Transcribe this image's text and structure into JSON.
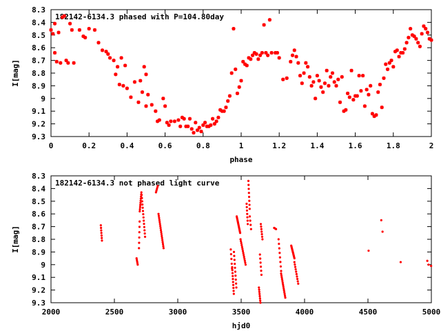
{
  "chart_data": [
    {
      "type": "scatter",
      "title": "182142-6134.3 phased with P=104.80day",
      "xlabel": "phase",
      "ylabel": "I[mag]",
      "xlim": [
        0,
        2
      ],
      "ylim": [
        8.3,
        9.3
      ],
      "y_inverted": true,
      "xticks": [
        "0",
        "0.2",
        "0.4",
        "0.6",
        "0.8",
        "1",
        "1.2",
        "1.4",
        "1.6",
        "1.8",
        "2"
      ],
      "yticks": [
        "8.3",
        "8.4",
        "8.5",
        "8.6",
        "8.7",
        "8.8",
        "8.9",
        "9",
        "9.1",
        "9.2",
        "9.3"
      ],
      "marker": "star",
      "color": "#ff0000",
      "points": [
        [
          0.0,
          8.46
        ],
        [
          0.01,
          8.49
        ],
        [
          0.02,
          8.41
        ],
        [
          0.02,
          8.64
        ],
        [
          0.03,
          8.71
        ],
        [
          0.04,
          8.48
        ],
        [
          0.05,
          8.72
        ],
        [
          0.06,
          8.36
        ],
        [
          0.07,
          8.35
        ],
        [
          0.08,
          8.7
        ],
        [
          0.09,
          8.72
        ],
        [
          0.1,
          8.41
        ],
        [
          0.11,
          8.46
        ],
        [
          0.12,
          8.72
        ],
        [
          0.15,
          8.46
        ],
        [
          0.17,
          8.51
        ],
        [
          0.18,
          8.52
        ],
        [
          0.2,
          8.45
        ],
        [
          0.23,
          8.46
        ],
        [
          0.25,
          8.56
        ],
        [
          0.27,
          8.62
        ],
        [
          0.29,
          8.63
        ],
        [
          0.3,
          8.65
        ],
        [
          0.31,
          8.68
        ],
        [
          0.33,
          8.7
        ],
        [
          0.34,
          8.81
        ],
        [
          0.35,
          8.75
        ],
        [
          0.36,
          8.89
        ],
        [
          0.37,
          8.68
        ],
        [
          0.38,
          8.9
        ],
        [
          0.39,
          8.74
        ],
        [
          0.4,
          8.92
        ],
        [
          0.42,
          8.99
        ],
        [
          0.44,
          8.87
        ],
        [
          0.46,
          9.03
        ],
        [
          0.47,
          8.86
        ],
        [
          0.48,
          8.95
        ],
        [
          0.49,
          8.75
        ],
        [
          0.5,
          8.81
        ],
        [
          0.5,
          9.06
        ],
        [
          0.51,
          8.97
        ],
        [
          0.53,
          9.05
        ],
        [
          0.55,
          9.1
        ],
        [
          0.56,
          9.18
        ],
        [
          0.57,
          9.17
        ],
        [
          0.59,
          9.0
        ],
        [
          0.6,
          9.06
        ],
        [
          0.61,
          9.19
        ],
        [
          0.62,
          9.21
        ],
        [
          0.63,
          9.18
        ],
        [
          0.65,
          9.18
        ],
        [
          0.67,
          9.17
        ],
        [
          0.68,
          9.22
        ],
        [
          0.69,
          9.15
        ],
        [
          0.7,
          9.16
        ],
        [
          0.71,
          9.22
        ],
        [
          0.72,
          9.22
        ],
        [
          0.73,
          9.16
        ],
        [
          0.74,
          9.24
        ],
        [
          0.75,
          9.27
        ],
        [
          0.76,
          9.19
        ],
        [
          0.77,
          9.25
        ],
        [
          0.78,
          9.23
        ],
        [
          0.79,
          9.26
        ],
        [
          0.8,
          9.21
        ],
        [
          0.81,
          9.19
        ],
        [
          0.82,
          9.22
        ],
        [
          0.83,
          9.22
        ],
        [
          0.84,
          9.21
        ],
        [
          0.85,
          9.16
        ],
        [
          0.86,
          9.2
        ],
        [
          0.87,
          9.18
        ],
        [
          0.88,
          9.15
        ],
        [
          0.89,
          9.09
        ],
        [
          0.9,
          9.1
        ],
        [
          0.91,
          9.1
        ],
        [
          0.92,
          9.07
        ],
        [
          0.93,
          9.02
        ],
        [
          0.94,
          8.98
        ],
        [
          0.95,
          8.8
        ],
        [
          0.96,
          8.45
        ],
        [
          0.97,
          8.77
        ],
        [
          0.98,
          8.96
        ],
        [
          0.99,
          8.91
        ],
        [
          1.0,
          8.86
        ],
        [
          1.01,
          8.71
        ],
        [
          1.02,
          8.73
        ],
        [
          1.03,
          8.74
        ],
        [
          1.04,
          8.68
        ],
        [
          1.05,
          8.69
        ],
        [
          1.06,
          8.66
        ],
        [
          1.07,
          8.64
        ],
        [
          1.08,
          8.65
        ],
        [
          1.09,
          8.69
        ],
        [
          1.1,
          8.66
        ],
        [
          1.11,
          8.64
        ],
        [
          1.12,
          8.42
        ],
        [
          1.13,
          8.64
        ],
        [
          1.14,
          8.66
        ],
        [
          1.15,
          8.38
        ],
        [
          1.16,
          8.64
        ],
        [
          1.18,
          8.64
        ],
        [
          1.19,
          8.64
        ],
        [
          1.2,
          8.68
        ],
        [
          1.22,
          8.85
        ],
        [
          1.24,
          8.84
        ],
        [
          1.26,
          8.71
        ],
        [
          1.27,
          8.66
        ],
        [
          1.28,
          8.62
        ],
        [
          1.29,
          8.67
        ],
        [
          1.3,
          8.72
        ],
        [
          1.31,
          8.82
        ],
        [
          1.32,
          8.88
        ],
        [
          1.33,
          8.8
        ],
        [
          1.34,
          8.72
        ],
        [
          1.35,
          8.75
        ],
        [
          1.36,
          8.83
        ],
        [
          1.37,
          8.9
        ],
        [
          1.38,
          8.87
        ],
        [
          1.39,
          9.0
        ],
        [
          1.4,
          8.82
        ],
        [
          1.41,
          8.86
        ],
        [
          1.42,
          8.91
        ],
        [
          1.43,
          8.95
        ],
        [
          1.44,
          8.88
        ],
        [
          1.45,
          8.78
        ],
        [
          1.46,
          8.9
        ],
        [
          1.47,
          8.83
        ],
        [
          1.48,
          8.8
        ],
        [
          1.49,
          8.87
        ],
        [
          1.5,
          8.9
        ],
        [
          1.51,
          8.85
        ],
        [
          1.52,
          9.03
        ],
        [
          1.53,
          8.83
        ],
        [
          1.54,
          9.1
        ],
        [
          1.55,
          9.09
        ],
        [
          1.56,
          8.96
        ],
        [
          1.57,
          8.99
        ],
        [
          1.58,
          8.78
        ],
        [
          1.59,
          9.01
        ],
        [
          1.6,
          8.98
        ],
        [
          1.61,
          8.98
        ],
        [
          1.62,
          8.82
        ],
        [
          1.63,
          8.94
        ],
        [
          1.64,
          8.82
        ],
        [
          1.65,
          9.06
        ],
        [
          1.66,
          8.93
        ],
        [
          1.67,
          8.97
        ],
        [
          1.68,
          8.9
        ],
        [
          1.69,
          9.12
        ],
        [
          1.7,
          9.14
        ],
        [
          1.71,
          9.13
        ],
        [
          1.72,
          8.95
        ],
        [
          1.73,
          8.89
        ],
        [
          1.74,
          9.07
        ],
        [
          1.75,
          8.84
        ],
        [
          1.76,
          8.73
        ],
        [
          1.77,
          8.77
        ],
        [
          1.78,
          8.72
        ],
        [
          1.79,
          8.7
        ],
        [
          1.8,
          8.75
        ],
        [
          1.81,
          8.63
        ],
        [
          1.82,
          8.62
        ],
        [
          1.83,
          8.67
        ],
        [
          1.84,
          8.64
        ],
        [
          1.85,
          8.64
        ],
        [
          1.86,
          8.61
        ],
        [
          1.87,
          8.56
        ],
        [
          1.88,
          8.52
        ],
        [
          1.89,
          8.45
        ],
        [
          1.9,
          8.5
        ],
        [
          1.91,
          8.51
        ],
        [
          1.92,
          8.53
        ],
        [
          1.93,
          8.56
        ],
        [
          1.94,
          8.59
        ],
        [
          1.95,
          8.49
        ],
        [
          1.96,
          8.43
        ],
        [
          1.97,
          8.45
        ],
        [
          1.98,
          8.48
        ],
        [
          1.99,
          8.53
        ],
        [
          2.0,
          8.54
        ]
      ]
    },
    {
      "type": "scatter",
      "title": "182142-6134.3 not phased light curve",
      "xlabel": "hjd0",
      "ylabel": "I[mag]",
      "xlim": [
        2000,
        5000
      ],
      "ylim": [
        8.3,
        9.3
      ],
      "y_inverted": true,
      "xticks": [
        "2000",
        "2500",
        "3000",
        "3500",
        "4000",
        "4500",
        "5000"
      ],
      "yticks": [
        "8.3",
        "8.4",
        "8.5",
        "8.6",
        "8.7",
        "8.8",
        "8.9",
        "9",
        "9.1",
        "9.2",
        "9.3"
      ],
      "marker": "dot",
      "color": "#ff0000",
      "segments": [
        {
          "x": [
            2393,
            2402
          ],
          "y": [
            8.69,
            8.81
          ],
          "n": 7
        },
        {
          "x": [
            2675,
            2684
          ],
          "y": [
            8.95,
            9.0
          ],
          "n": 5
        },
        {
          "x": [
            2694,
            2699
          ],
          "y": [
            8.87,
            8.66
          ],
          "n": 6
        },
        {
          "x": [
            2700,
            2713
          ],
          "y": [
            8.58,
            8.43
          ],
          "n": 10
        },
        {
          "x": [
            2715,
            2742
          ],
          "y": [
            8.45,
            8.78
          ],
          "n": 14
        },
        {
          "x": [
            2828,
            2842
          ],
          "y": [
            8.43,
            8.38
          ],
          "n": 5
        },
        {
          "x": [
            2848,
            2888
          ],
          "y": [
            8.6,
            8.87
          ],
          "n": 18
        },
        {
          "x": [
            3418,
            3428
          ],
          "y": [
            8.88,
            9.03
          ],
          "n": 5
        },
        {
          "x": [
            3429,
            3442
          ],
          "y": [
            9.02,
            9.23
          ],
          "n": 10
        },
        {
          "x": [
            3443,
            3462
          ],
          "y": [
            8.9,
            9.18
          ],
          "n": 10
        },
        {
          "x": [
            3465,
            3492
          ],
          "y": [
            8.62,
            8.75
          ],
          "n": 14
        },
        {
          "x": [
            3495,
            3535
          ],
          "y": [
            8.8,
            9.0
          ],
          "n": 14
        },
        {
          "x": [
            3543,
            3552
          ],
          "y": [
            8.52,
            8.68
          ],
          "n": 7
        },
        {
          "x": [
            3557,
            3567
          ],
          "y": [
            8.34,
            8.56
          ],
          "n": 8
        },
        {
          "x": [
            3568,
            3578
          ],
          "y": [
            8.62,
            8.72
          ],
          "n": 4
        },
        {
          "x": [
            3640,
            3652
          ],
          "y": [
            9.18,
            9.3
          ],
          "n": 8
        },
        {
          "x": [
            3648,
            3660
          ],
          "y": [
            8.92,
            9.08
          ],
          "n": 6
        },
        {
          "x": [
            3655,
            3668
          ],
          "y": [
            8.68,
            8.8
          ],
          "n": 7
        },
        {
          "x": [
            3760,
            3775
          ],
          "y": [
            8.71,
            8.72
          ],
          "n": 4
        },
        {
          "x": [
            3795,
            3815
          ],
          "y": [
            8.8,
            9.05
          ],
          "n": 8
        },
        {
          "x": [
            3815,
            3848
          ],
          "y": [
            9.07,
            9.26
          ],
          "n": 14
        },
        {
          "x": [
            3895,
            3920
          ],
          "y": [
            8.85,
            8.95
          ],
          "n": 12
        },
        {
          "x": [
            3920,
            3950
          ],
          "y": [
            8.98,
            9.15
          ],
          "n": 10
        }
      ],
      "points": [
        [
          4505,
          8.89
        ],
        [
          4605,
          8.65
        ],
        [
          4615,
          8.74
        ],
        [
          4758,
          8.98
        ],
        [
          4968,
          8.97
        ],
        [
          4978,
          9.0
        ],
        [
          4998,
          9.01
        ]
      ]
    }
  ]
}
